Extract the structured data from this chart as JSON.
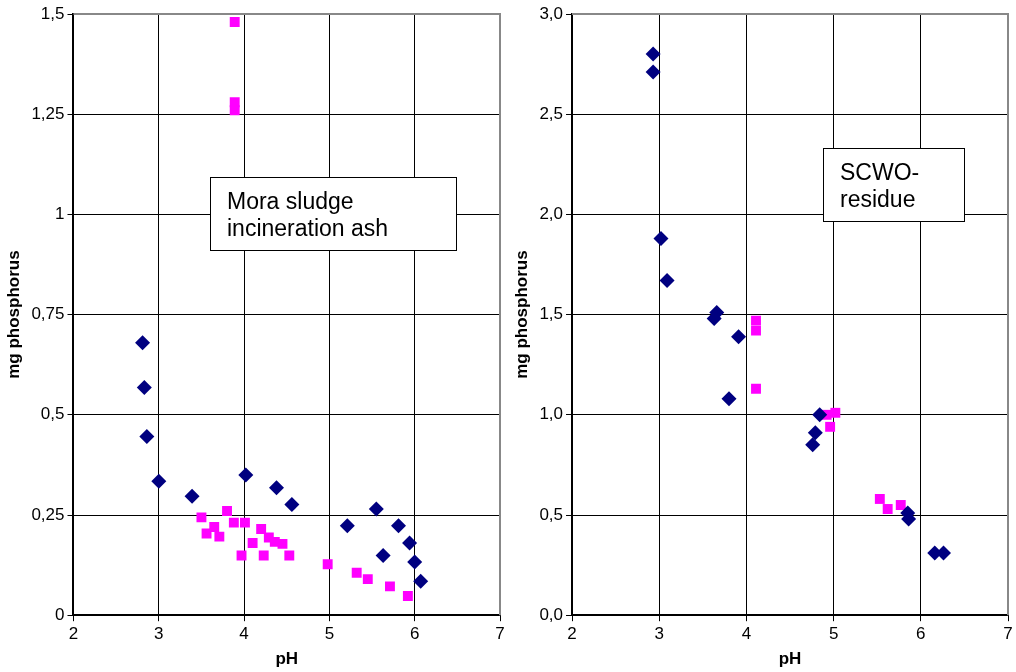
{
  "chart_data": [
    {
      "type": "scatter",
      "xlabel": "pH",
      "ylabel": "mg phosphorus",
      "xlim": [
        2,
        7
      ],
      "xticks": [
        2,
        3,
        4,
        5,
        6,
        7
      ],
      "ylim": [
        0,
        1.5
      ],
      "yticks": [
        0,
        {
          "value": 0.25,
          "label": "0,25"
        },
        {
          "value": 0.5,
          "label": "0,5"
        },
        {
          "value": 0.75,
          "label": "0,75"
        },
        1,
        {
          "value": 1.25,
          "label": "1,25"
        },
        {
          "value": 1.5,
          "label": "1,5"
        }
      ],
      "grid": true,
      "legend": false,
      "annotations": [
        "Mora sludge incineration ash"
      ],
      "series": [
        {
          "color": "#000080",
          "marker": "diamond",
          "x": [
            2.81,
            2.83,
            2.86,
            3.0,
            3.39,
            4.02,
            4.38,
            4.56,
            5.21,
            5.55,
            5.63,
            5.81,
            5.94,
            6.0,
            6.07
          ],
          "values": [
            0.68,
            0.568,
            0.446,
            0.334,
            0.297,
            0.35,
            0.318,
            0.276,
            0.223,
            0.265,
            0.149,
            0.223,
            0.18,
            0.133,
            0.085
          ]
        },
        {
          "color": "#ff00ff",
          "marker": "square",
          "x": [
            3.89,
            3.89,
            3.89,
            3.5,
            3.65,
            3.56,
            3.71,
            3.8,
            3.88,
            4.01,
            3.97,
            4.2,
            4.1,
            4.23,
            4.29,
            4.36,
            4.45,
            4.53,
            4.98,
            5.32,
            5.45,
            5.71,
            5.92
          ],
          "values": [
            1.48,
            1.28,
            1.26,
            0.244,
            0.22,
            0.204,
            0.196,
            0.26,
            0.231,
            0.231,
            0.149,
            0.215,
            0.18,
            0.149,
            0.194,
            0.183,
            0.178,
            0.149,
            0.127,
            0.106,
            0.09,
            0.072,
            0.048
          ]
        }
      ]
    },
    {
      "type": "scatter",
      "xlabel": "pH",
      "ylabel": "mg phosphorus",
      "xlim": [
        2,
        7
      ],
      "xticks": [
        2,
        3,
        4,
        5,
        6,
        7
      ],
      "ylim": [
        0,
        3
      ],
      "yticks": [
        {
          "value": 0,
          "label": "0,0"
        },
        {
          "value": 0.5,
          "label": "0,5"
        },
        {
          "value": 1,
          "label": "1,0"
        },
        {
          "value": 1.5,
          "label": "1,5"
        },
        {
          "value": 2,
          "label": "2,0"
        },
        {
          "value": 2.5,
          "label": "2,5"
        },
        {
          "value": 3,
          "label": "3,0"
        }
      ],
      "grid": true,
      "legend": false,
      "annotations": [
        "SCWO-residue"
      ],
      "series": [
        {
          "color": "#000080",
          "marker": "diamond",
          "x": [
            2.93,
            2.93,
            3.02,
            3.09,
            3.66,
            3.63,
            3.91,
            3.8,
            4.84,
            4.79,
            4.76,
            5.85,
            5.86,
            6.16,
            6.26
          ],
          "values": [
            2.8,
            2.71,
            1.88,
            1.67,
            1.51,
            1.48,
            1.39,
            1.08,
            1.0,
            0.91,
            0.85,
            0.51,
            0.48,
            0.31,
            0.31
          ]
        },
        {
          "color": "#ff00ff",
          "marker": "square",
          "x": [
            4.11,
            4.11,
            4.11,
            4.92,
            4.96,
            5.02,
            5.53,
            5.62,
            5.77
          ],
          "values": [
            1.47,
            1.42,
            1.13,
            1.0,
            0.94,
            1.01,
            0.58,
            0.53,
            0.55
          ]
        }
      ]
    }
  ]
}
